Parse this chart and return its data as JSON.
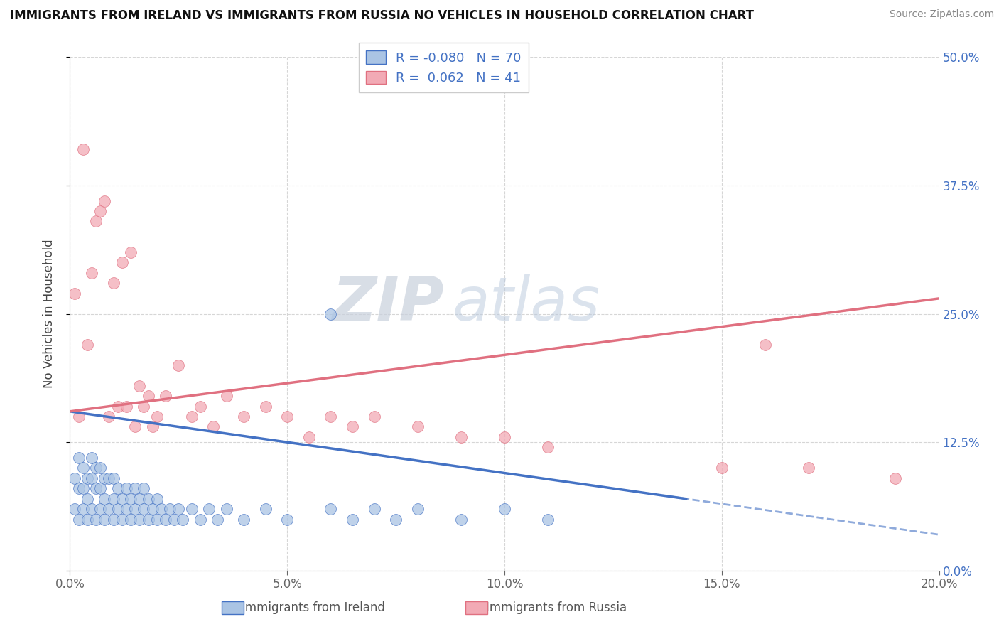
{
  "title": "IMMIGRANTS FROM IRELAND VS IMMIGRANTS FROM RUSSIA NO VEHICLES IN HOUSEHOLD CORRELATION CHART",
  "source": "Source: ZipAtlas.com",
  "xlabel_bottom": [
    "Immigrants from Ireland",
    "Immigrants from Russia"
  ],
  "ylabel": "No Vehicles in Household",
  "xlim": [
    0.0,
    0.2
  ],
  "ylim": [
    0.0,
    0.5
  ],
  "xticks": [
    0.0,
    0.05,
    0.1,
    0.15,
    0.2
  ],
  "xtick_labels": [
    "0.0%",
    "5.0%",
    "10.0%",
    "15.0%",
    "20.0%"
  ],
  "yticks": [
    0.0,
    0.125,
    0.25,
    0.375,
    0.5
  ],
  "ytick_labels_right": [
    "0.0%",
    "12.5%",
    "25.0%",
    "37.5%",
    "50.0%"
  ],
  "ireland_R": -0.08,
  "ireland_N": 70,
  "russia_R": 0.062,
  "russia_N": 41,
  "ireland_color": "#aac4e4",
  "russia_color": "#f2aab5",
  "ireland_line_color": "#4472c4",
  "russia_line_color": "#e07080",
  "ireland_trend_intercept": 0.155,
  "ireland_trend_slope": -0.6,
  "russia_trend_intercept": 0.155,
  "russia_trend_slope": 0.55,
  "ireland_x": [
    0.001,
    0.001,
    0.002,
    0.002,
    0.002,
    0.003,
    0.003,
    0.003,
    0.004,
    0.004,
    0.004,
    0.005,
    0.005,
    0.005,
    0.006,
    0.006,
    0.006,
    0.007,
    0.007,
    0.007,
    0.008,
    0.008,
    0.008,
    0.009,
    0.009,
    0.01,
    0.01,
    0.01,
    0.011,
    0.011,
    0.012,
    0.012,
    0.013,
    0.013,
    0.014,
    0.014,
    0.015,
    0.015,
    0.016,
    0.016,
    0.017,
    0.017,
    0.018,
    0.018,
    0.019,
    0.02,
    0.02,
    0.021,
    0.022,
    0.023,
    0.024,
    0.025,
    0.026,
    0.028,
    0.03,
    0.032,
    0.034,
    0.036,
    0.04,
    0.045,
    0.05,
    0.06,
    0.065,
    0.07,
    0.075,
    0.08,
    0.09,
    0.1,
    0.11,
    0.06
  ],
  "ireland_y": [
    0.06,
    0.09,
    0.05,
    0.08,
    0.11,
    0.06,
    0.08,
    0.1,
    0.05,
    0.07,
    0.09,
    0.06,
    0.09,
    0.11,
    0.05,
    0.08,
    0.1,
    0.06,
    0.08,
    0.1,
    0.05,
    0.07,
    0.09,
    0.06,
    0.09,
    0.05,
    0.07,
    0.09,
    0.06,
    0.08,
    0.05,
    0.07,
    0.06,
    0.08,
    0.05,
    0.07,
    0.06,
    0.08,
    0.05,
    0.07,
    0.06,
    0.08,
    0.05,
    0.07,
    0.06,
    0.05,
    0.07,
    0.06,
    0.05,
    0.06,
    0.05,
    0.06,
    0.05,
    0.06,
    0.05,
    0.06,
    0.05,
    0.06,
    0.05,
    0.06,
    0.05,
    0.06,
    0.05,
    0.06,
    0.05,
    0.06,
    0.05,
    0.06,
    0.05,
    0.25
  ],
  "russia_x": [
    0.001,
    0.002,
    0.003,
    0.004,
    0.005,
    0.006,
    0.007,
    0.008,
    0.009,
    0.01,
    0.011,
    0.012,
    0.013,
    0.014,
    0.015,
    0.016,
    0.017,
    0.018,
    0.019,
    0.02,
    0.022,
    0.025,
    0.028,
    0.03,
    0.033,
    0.036,
    0.04,
    0.045,
    0.05,
    0.055,
    0.06,
    0.065,
    0.07,
    0.08,
    0.09,
    0.1,
    0.11,
    0.15,
    0.16,
    0.17,
    0.19
  ],
  "russia_y": [
    0.27,
    0.15,
    0.41,
    0.22,
    0.29,
    0.34,
    0.35,
    0.36,
    0.15,
    0.28,
    0.16,
    0.3,
    0.16,
    0.31,
    0.14,
    0.18,
    0.16,
    0.17,
    0.14,
    0.15,
    0.17,
    0.2,
    0.15,
    0.16,
    0.14,
    0.17,
    0.15,
    0.16,
    0.15,
    0.13,
    0.15,
    0.14,
    0.15,
    0.14,
    0.13,
    0.13,
    0.12,
    0.1,
    0.22,
    0.1,
    0.09
  ]
}
